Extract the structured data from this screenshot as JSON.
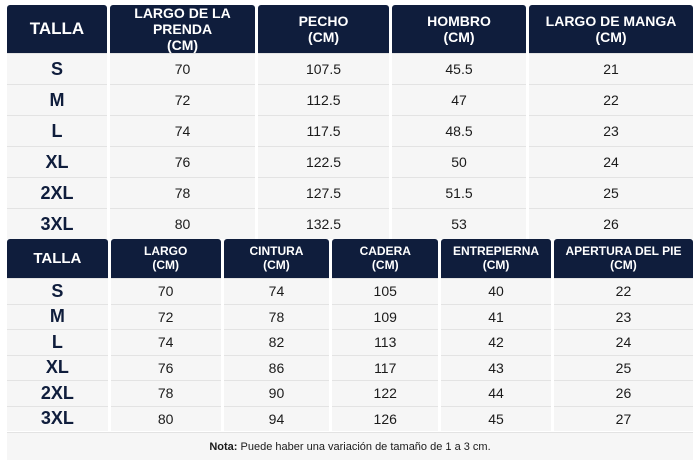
{
  "top_table": {
    "headers": [
      {
        "line1": "TALLA",
        "line2": ""
      },
      {
        "line1": "LARGO DE LA PRENDA",
        "line2": "(CM)"
      },
      {
        "line1": "PECHO",
        "line2": "(CM)"
      },
      {
        "line1": "HOMBRO",
        "line2": "(CM)"
      },
      {
        "line1": "LARGO DE MANGA",
        "line2": "(CM)"
      }
    ],
    "rows": [
      [
        "S",
        "70",
        "107.5",
        "45.5",
        "21"
      ],
      [
        "M",
        "72",
        "112.5",
        "47",
        "22"
      ],
      [
        "L",
        "74",
        "117.5",
        "48.5",
        "23"
      ],
      [
        "XL",
        "76",
        "122.5",
        "50",
        "24"
      ],
      [
        "2XL",
        "78",
        "127.5",
        "51.5",
        "25"
      ],
      [
        "3XL",
        "80",
        "132.5",
        "53",
        "26"
      ]
    ]
  },
  "bottom_table": {
    "headers": [
      {
        "line1": "TALLA",
        "line2": ""
      },
      {
        "line1": "LARGO",
        "line2": "(CM)"
      },
      {
        "line1": "CINTURA",
        "line2": "(CM)"
      },
      {
        "line1": "CADERA",
        "line2": "(CM)"
      },
      {
        "line1": "ENTREPIERNA",
        "line2": "(CM)"
      },
      {
        "line1": "APERTURA DEL PIE",
        "line2": "(CM)"
      }
    ],
    "rows": [
      [
        "S",
        "70",
        "74",
        "105",
        "40",
        "22"
      ],
      [
        "M",
        "72",
        "78",
        "109",
        "41",
        "23"
      ],
      [
        "L",
        "74",
        "82",
        "113",
        "42",
        "24"
      ],
      [
        "XL",
        "76",
        "86",
        "117",
        "43",
        "25"
      ],
      [
        "2XL",
        "78",
        "90",
        "122",
        "44",
        "26"
      ],
      [
        "3XL",
        "80",
        "94",
        "126",
        "45",
        "27"
      ]
    ]
  },
  "note": {
    "label": "Nota:",
    "text": " Puede haber una variación de tamaño de 1 a 3 cm."
  }
}
